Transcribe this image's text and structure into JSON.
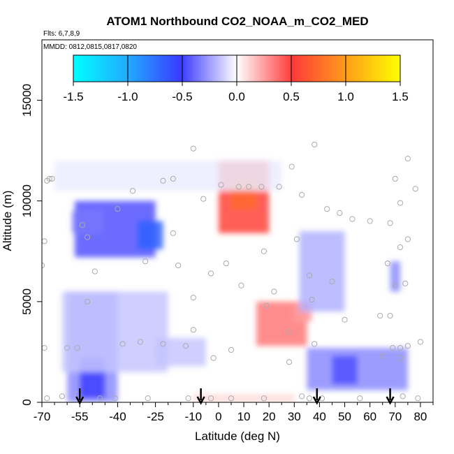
{
  "chart_data": {
    "type": "heatmap",
    "title": "ATOM1 Northbound CO2_NOAA_m_CO2_MED",
    "flights_label": "Flts: 6,7,8,9",
    "dates_label": "MMDD: 0812,0815,0817,0820",
    "xlabel": "Latitude (deg N)",
    "ylabel": "Altitude (m)",
    "xlim": [
      -70,
      85
    ],
    "ylim": [
      0,
      18000
    ],
    "x_ticks": [
      -70,
      -55,
      -40,
      -25,
      -10,
      0,
      10,
      20,
      30,
      40,
      50,
      60,
      70,
      80
    ],
    "y_ticks": [
      0,
      5000,
      10000,
      15000
    ],
    "colorbar": {
      "range": [
        -1.5,
        1.5
      ],
      "ticks": [
        "-1.5",
        "-1.0",
        "-0.5",
        "0.0",
        "0.5",
        "1.0",
        "1.5"
      ],
      "colors": [
        "#00ffff",
        "#3a3aff",
        "#ffffff",
        "#ff3a3a",
        "#ffff00"
      ]
    },
    "anomaly_regions": [
      {
        "lat": [
          -57,
          -25
        ],
        "alt": [
          7200,
          10000
        ],
        "value": -0.45
      },
      {
        "lat": [
          -32,
          -22
        ],
        "alt": [
          7600,
          9000
        ],
        "value": -0.7
      },
      {
        "lat": [
          -58,
          -46
        ],
        "alt": [
          8400,
          9500
        ],
        "value": -0.35
      },
      {
        "lat": [
          -60,
          -40
        ],
        "alt": [
          0,
          5500
        ],
        "value": -0.3
      },
      {
        "lat": [
          -55,
          -45
        ],
        "alt": [
          200,
          2200
        ],
        "value": -0.5
      },
      {
        "lat": [
          -62,
          -20
        ],
        "alt": [
          1500,
          5500
        ],
        "value": -0.15
      },
      {
        "lat": [
          -25,
          -5
        ],
        "alt": [
          1800,
          3200
        ],
        "value": -0.15
      },
      {
        "lat": [
          0,
          20
        ],
        "alt": [
          8400,
          12000
        ],
        "value": 0.55
      },
      {
        "lat": [
          5,
          15
        ],
        "alt": [
          9600,
          11200
        ],
        "value": 0.75
      },
      {
        "lat": [
          15,
          35
        ],
        "alt": [
          2800,
          5000
        ],
        "value": 0.35
      },
      {
        "lat": [
          30,
          37
        ],
        "alt": [
          4000,
          5000
        ],
        "value": 0.25
      },
      {
        "lat": [
          32,
          50
        ],
        "alt": [
          4500,
          8500
        ],
        "value": -0.2
      },
      {
        "lat": [
          35,
          75
        ],
        "alt": [
          600,
          2700
        ],
        "value": -0.3
      },
      {
        "lat": [
          45,
          55
        ],
        "alt": [
          900,
          2300
        ],
        "value": -0.45
      },
      {
        "lat": [
          -65,
          25
        ],
        "alt": [
          10500,
          12000
        ],
        "value": -0.05
      },
      {
        "lat": [
          68,
          72
        ],
        "alt": [
          5500,
          7000
        ],
        "value": -0.3
      },
      {
        "lat": [
          -10,
          30
        ],
        "alt": [
          0,
          400
        ],
        "value": 0.1
      }
    ],
    "sample_points": [
      [
        -68,
        11000
      ],
      [
        -67,
        11100
      ],
      [
        -66,
        11100
      ],
      [
        -69,
        8000
      ],
      [
        -70,
        6800
      ],
      [
        -69,
        2700
      ],
      [
        -60,
        2700
      ],
      [
        -56,
        2700
      ],
      [
        -52,
        5000
      ],
      [
        -49,
        6500
      ],
      [
        -54,
        8800
      ],
      [
        -52,
        8200
      ],
      [
        -40,
        9600
      ],
      [
        -34,
        10500
      ],
      [
        -29,
        7000
      ],
      [
        -22,
        11000
      ],
      [
        -18,
        11100
      ],
      [
        -18,
        8400
      ],
      [
        -16,
        6800
      ],
      [
        -10,
        12600
      ],
      [
        -6,
        10100
      ],
      [
        1,
        10800
      ],
      [
        8,
        10700
      ],
      [
        12,
        10700
      ],
      [
        17,
        10700
      ],
      [
        24,
        10700
      ],
      [
        29,
        11700
      ],
      [
        33,
        10300
      ],
      [
        38,
        12800
      ],
      [
        43,
        9600
      ],
      [
        48,
        9400
      ],
      [
        53,
        9100
      ],
      [
        60,
        9000
      ],
      [
        68,
        8900
      ],
      [
        70,
        11100
      ],
      [
        72,
        9900
      ],
      [
        75,
        12100
      ],
      [
        78,
        10600
      ],
      [
        75,
        8100
      ],
      [
        72,
        7700
      ],
      [
        67,
        6900
      ],
      [
        70,
        5800
      ],
      [
        74,
        5900
      ],
      [
        -38,
        2900
      ],
      [
        -31,
        3000
      ],
      [
        -22,
        2900
      ],
      [
        -13,
        2800
      ],
      [
        -10,
        3600
      ],
      [
        -10,
        5200
      ],
      [
        -3,
        6400
      ],
      [
        3,
        6900
      ],
      [
        9,
        5800
      ],
      [
        19,
        4800
      ],
      [
        18,
        7500
      ],
      [
        22,
        5500
      ],
      [
        28,
        3500
      ],
      [
        31,
        8100
      ],
      [
        36,
        6300
      ],
      [
        37,
        5100
      ],
      [
        45,
        6000
      ],
      [
        50,
        4100
      ],
      [
        64,
        4300
      ],
      [
        68,
        4300
      ],
      [
        65,
        2300
      ],
      [
        69,
        2700
      ],
      [
        72,
        2700
      ],
      [
        75,
        2800
      ],
      [
        80,
        3000
      ],
      [
        72,
        2200
      ],
      [
        38,
        2900
      ],
      [
        28,
        2000
      ],
      [
        5,
        2600
      ],
      [
        -2,
        2200
      ],
      [
        -56,
        400
      ],
      [
        -47,
        200
      ],
      [
        -41,
        200
      ],
      [
        -28,
        200
      ],
      [
        -12,
        200
      ],
      [
        -3,
        200
      ],
      [
        5,
        200
      ],
      [
        18,
        200
      ],
      [
        33,
        300
      ],
      [
        36,
        200
      ],
      [
        41,
        200
      ],
      [
        56,
        200
      ],
      [
        73,
        300
      ],
      [
        79,
        200
      ],
      [
        -68,
        200
      ],
      [
        -62,
        300
      ]
    ],
    "flight_arrows_lat": [
      -55,
      -7,
      39,
      68
    ]
  }
}
